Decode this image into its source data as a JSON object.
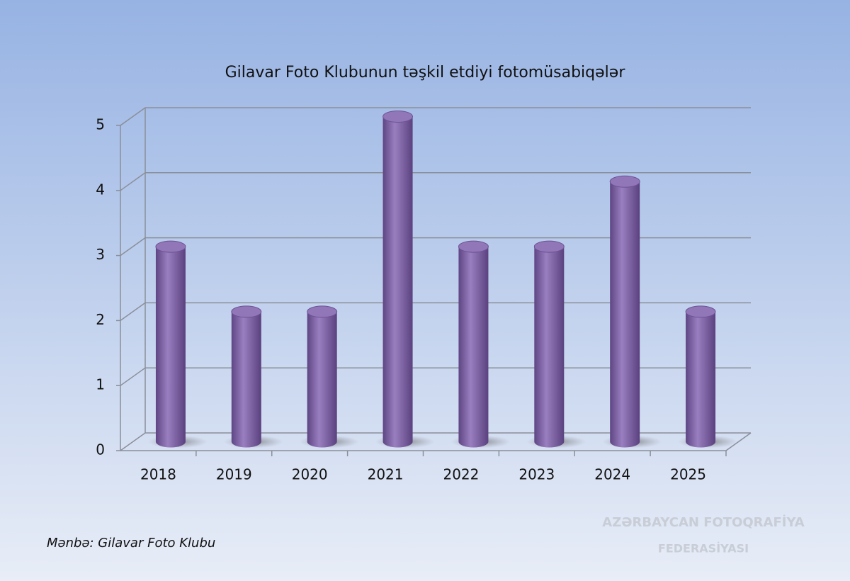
{
  "chart_data": {
    "type": "bar3d",
    "title": "Gilavar Foto Klubunun təşkil etdiyi fotomüsabiqələr",
    "categories": [
      "2018",
      "2019",
      "2020",
      "2021",
      "2022",
      "2023",
      "2024",
      "2025"
    ],
    "values": [
      3,
      2,
      2,
      5,
      3,
      3,
      4,
      2
    ],
    "color": "#8064a2",
    "ylim": [
      0,
      5
    ],
    "yticks": [
      0,
      1,
      2,
      3,
      4,
      5
    ],
    "grid": true,
    "source": "Mənbə: Gilavar Foto Klubu",
    "watermark": [
      "AZƏRBAYCAN FOTOQRAFİYA",
      "FEDERASİYASI"
    ]
  }
}
